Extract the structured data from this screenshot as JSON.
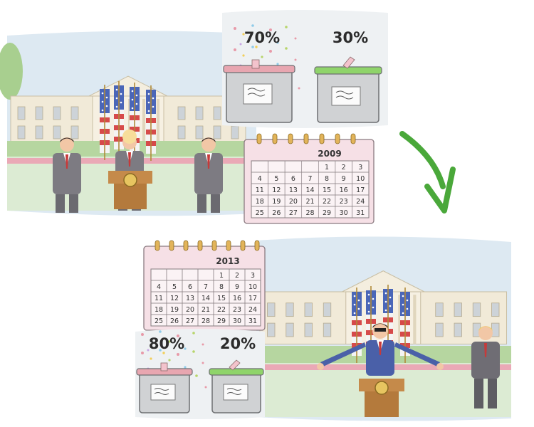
{
  "scene_top": {
    "year": "2009",
    "ballot_left": "70%",
    "ballot_right": "30%",
    "calendar_rows": [
      [
        "",
        "",
        "",
        "",
        "1",
        "2",
        "3"
      ],
      [
        "4",
        "5",
        "6",
        "7",
        "8",
        "9",
        "10"
      ],
      [
        "11",
        "12",
        "13",
        "14",
        "15",
        "16",
        "17"
      ],
      [
        "18",
        "19",
        "20",
        "21",
        "22",
        "23",
        "24"
      ],
      [
        "25",
        "26",
        "27",
        "28",
        "29",
        "30",
        "31"
      ]
    ]
  },
  "scene_bottom": {
    "year": "2013",
    "ballot_left": "80%",
    "ballot_right": "20%",
    "calendar_rows": [
      [
        "",
        "",
        "",
        "",
        "1",
        "2",
        "3"
      ],
      [
        "4",
        "5",
        "6",
        "7",
        "8",
        "9",
        "10"
      ],
      [
        "11",
        "12",
        "13",
        "14",
        "15",
        "16",
        "17"
      ],
      [
        "18",
        "19",
        "20",
        "21",
        "22",
        "23",
        "24"
      ],
      [
        "25",
        "26",
        "27",
        "28",
        "29",
        "30",
        "31"
      ]
    ]
  },
  "colors": {
    "sky": "#dde9f2",
    "building": "#f1ead8",
    "lawn": "#dcebd3",
    "arrow": "#4aa83a",
    "box_left_lid": "#e8a6b0",
    "box_right_lid": "#8fd46a",
    "calendar_bg": "#f6e0e6",
    "flag_red": "#d64a4a",
    "flag_blue": "#4a66b8"
  }
}
